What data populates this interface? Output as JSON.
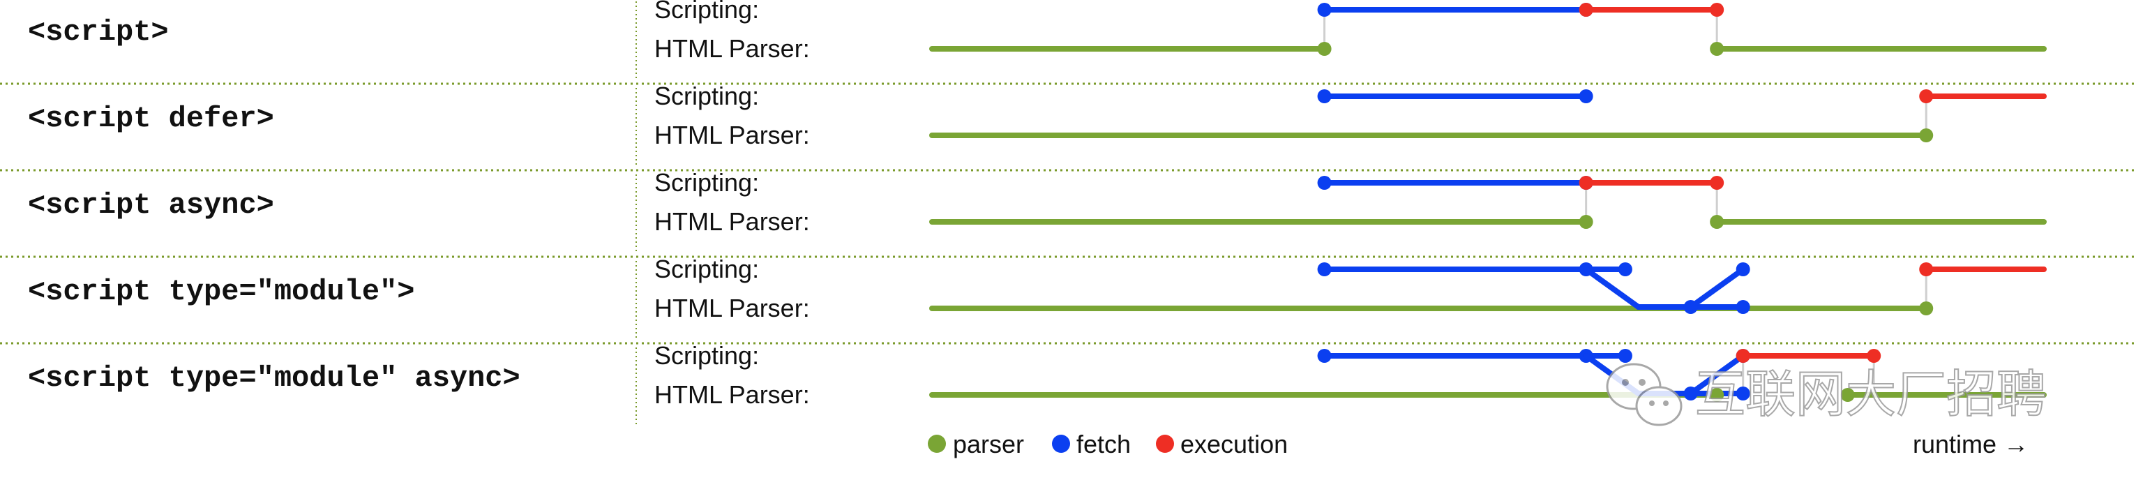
{
  "lane_labels": {
    "scripting": "Scripting:",
    "parser": "HTML Parser:"
  },
  "colors": {
    "parser": "#7aa535",
    "fetch": "#0b3ff0",
    "execution": "#ee2e24",
    "connector": "#cfcfcf",
    "separator": "#7a9a2a"
  },
  "rows": [
    {
      "label": "<script>",
      "parser": [
        [
          0,
          30
        ],
        [
          60,
          85
        ]
      ],
      "fetch": [
        [
          30,
          50
        ]
      ],
      "exec": [
        [
          50,
          60
        ]
      ],
      "connectors": [
        30,
        60
      ]
    },
    {
      "label": "<script defer>",
      "parser": [
        [
          0,
          76
        ]
      ],
      "fetch": [
        [
          30,
          50
        ]
      ],
      "exec": [
        [
          76,
          85
        ]
      ],
      "connectors": [
        76
      ]
    },
    {
      "label": "<script async>",
      "parser": [
        [
          0,
          50
        ],
        [
          60,
          85
        ]
      ],
      "fetch": [
        [
          30,
          50
        ]
      ],
      "exec": [
        [
          50,
          60
        ]
      ],
      "connectors": [
        50,
        60
      ]
    },
    {
      "label": "<script type=\"module\">",
      "parser": [
        [
          0,
          76
        ]
      ],
      "fetch": [
        [
          30,
          50
        ]
      ],
      "fetch_tree": true,
      "exec": [
        [
          76,
          85
        ]
      ],
      "connectors": [
        76
      ]
    },
    {
      "label": "<script type=\"module\" async>",
      "parser": [
        [
          0,
          60
        ],
        [
          70,
          85
        ]
      ],
      "fetch": [
        [
          30,
          50
        ]
      ],
      "fetch_tree": true,
      "exec": [
        [
          62,
          72
        ]
      ],
      "connectors": [
        62,
        72
      ]
    }
  ],
  "legend": [
    {
      "label": "parser",
      "key": "parser"
    },
    {
      "label": "fetch",
      "key": "fetch"
    },
    {
      "label": "execution",
      "key": "execution"
    }
  ],
  "runtime_label": "runtime →",
  "watermark": {
    "text": "互联网大厂招聘",
    "icon": "wechat-icon"
  }
}
